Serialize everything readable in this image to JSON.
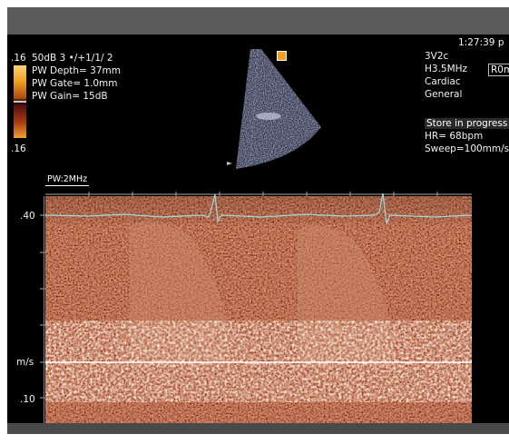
{
  "clock": "1:27:39 p",
  "left_panel": {
    "scale_top": ".16",
    "scale_bottom": ".16",
    "settings_line": "50dB  3 •/+1/1/ 2",
    "pw_depth": "PW Depth=  37mm",
    "pw_gate": "PW Gate=  1.0mm",
    "pw_gain": "PW Gain=  15dB"
  },
  "right_panel": {
    "probe": "3V2c",
    "frequency": "H3.5MHz",
    "preset_1": "Cardiac",
    "preset_2": "General",
    "preset_box": "R0m",
    "store_status": "Store in progress",
    "heart_rate": "HR=  68bpm",
    "sweep": "Sweep=100mm/s"
  },
  "doppler": {
    "mode_label": "PW:2MHz",
    "velocity_top": ".40",
    "velocity_unit": "m/s",
    "velocity_bottom": ".10"
  },
  "colors": {
    "background": "#000000",
    "spectrum_dark": "#2a0a05",
    "spectrum_bright": "#f7e1c4",
    "ecg_trace": "#a0d8e0",
    "topbar": "#5a5a5a"
  }
}
